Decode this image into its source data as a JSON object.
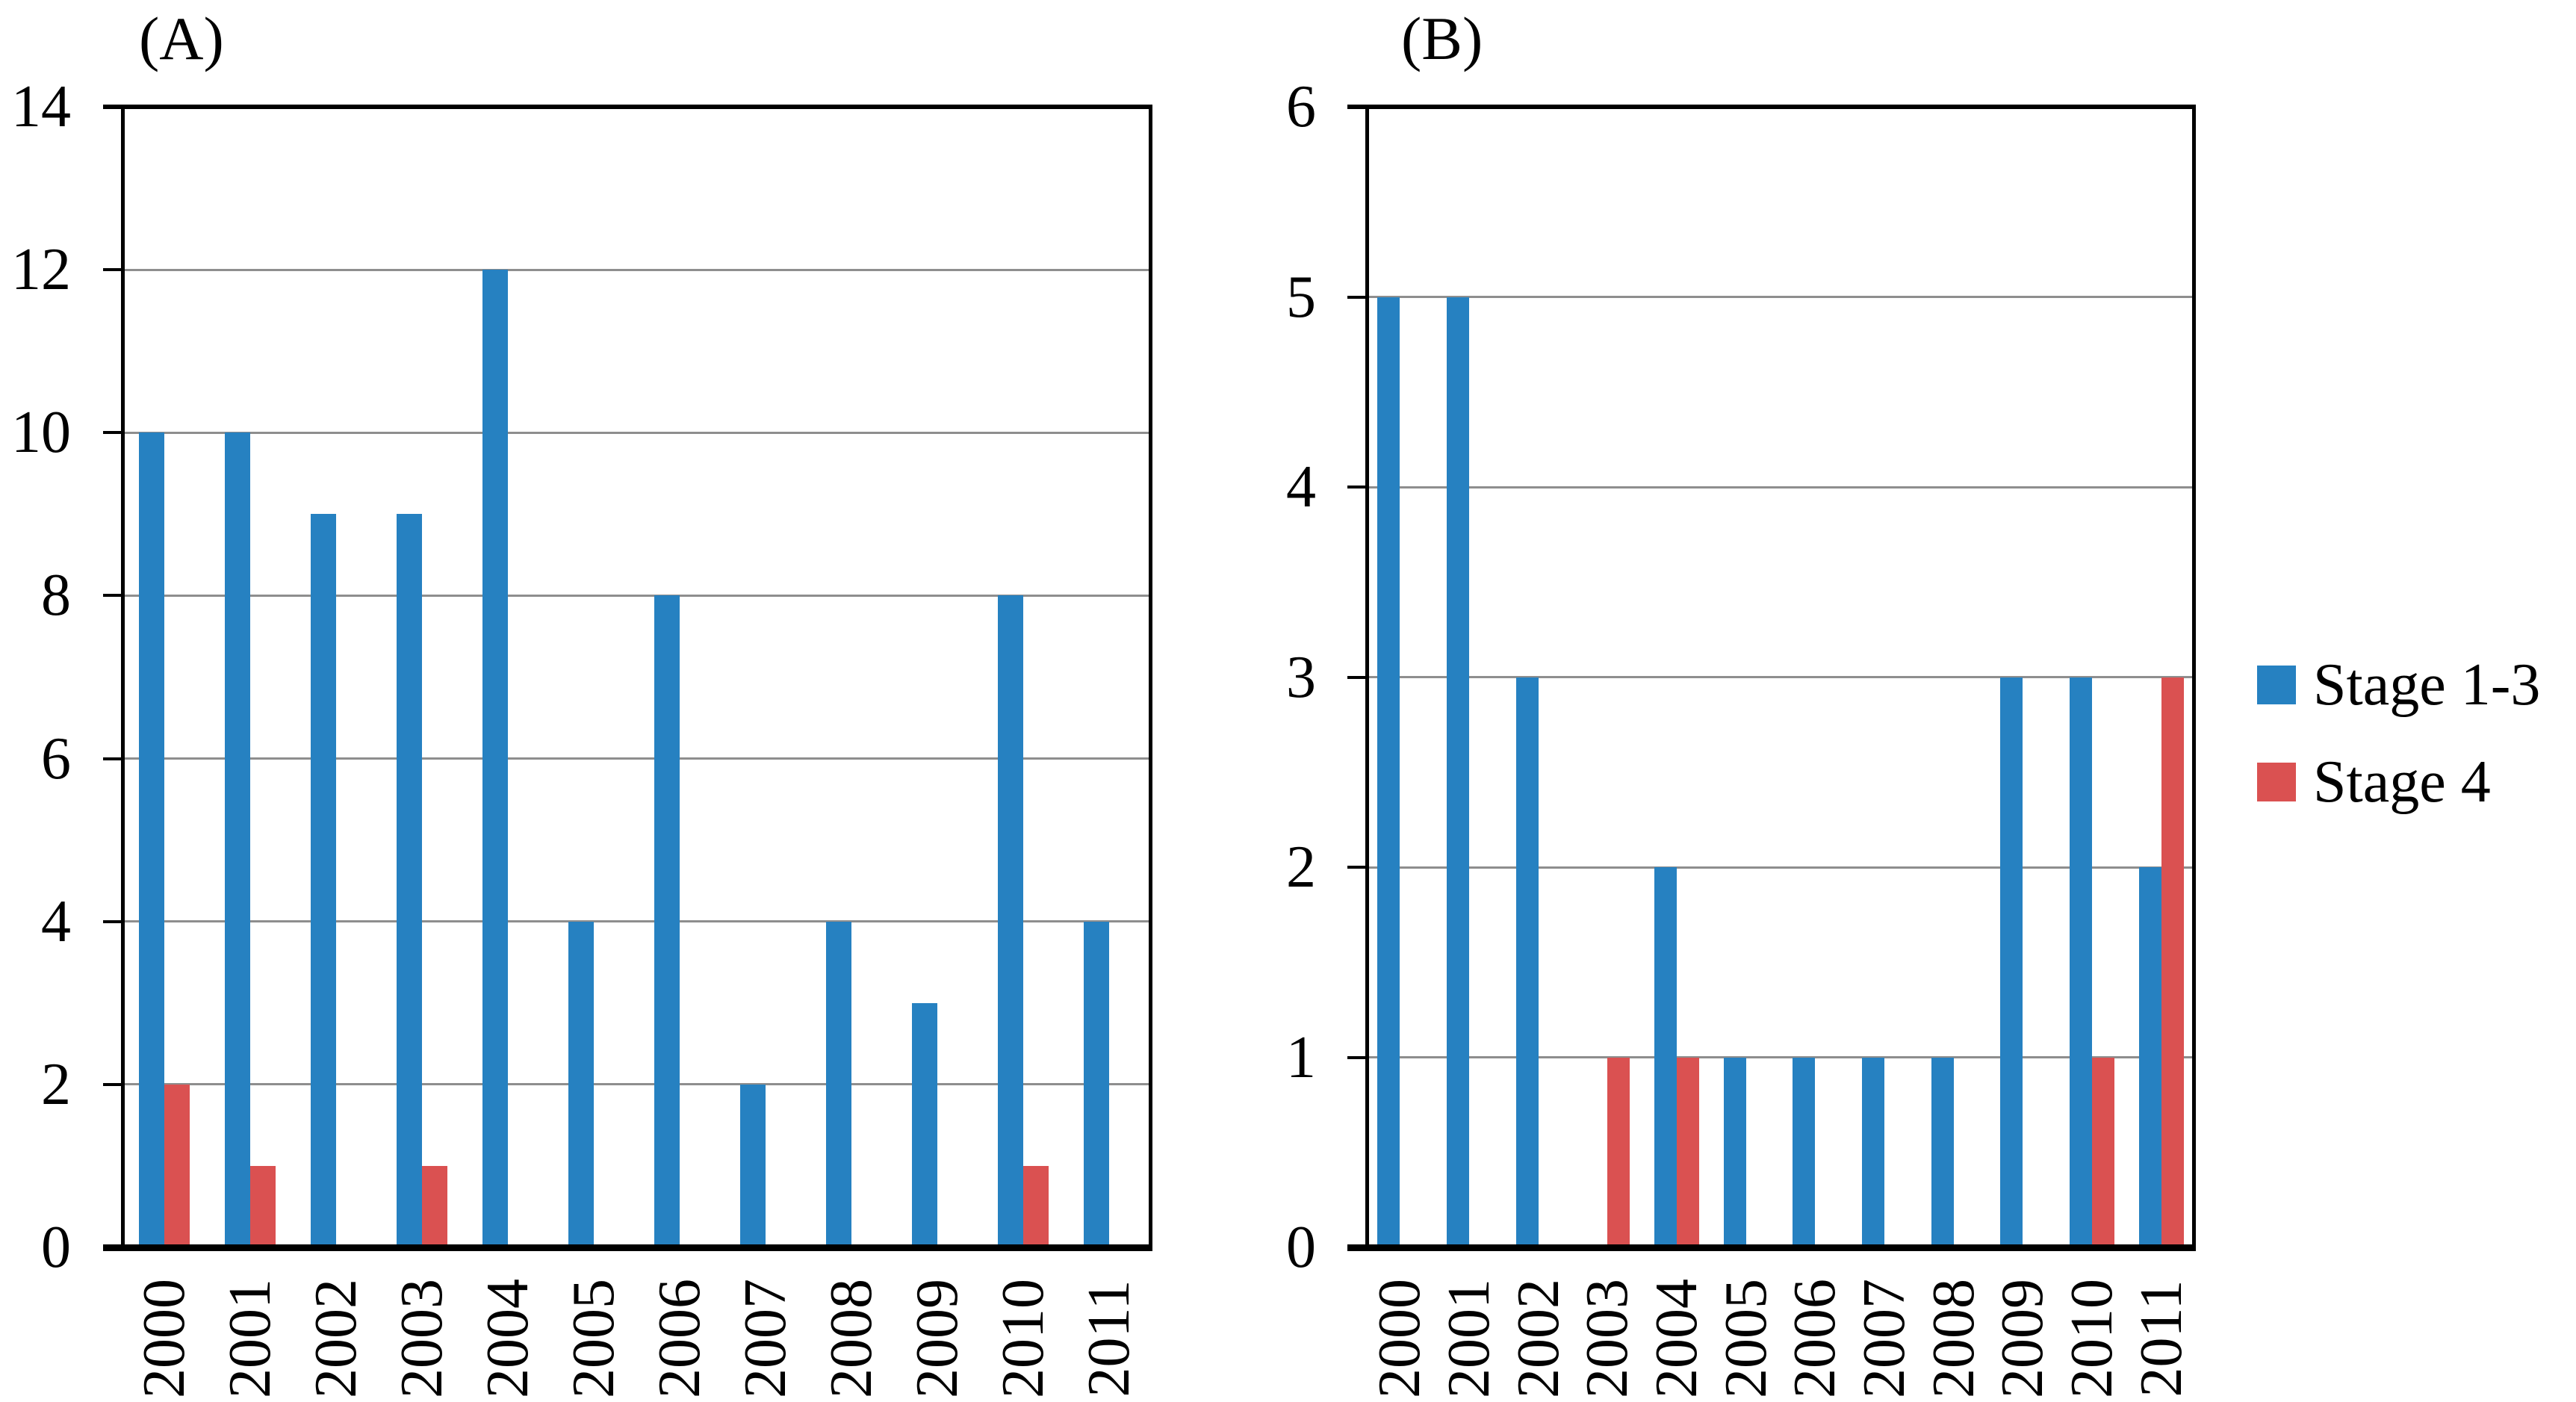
{
  "figure_description": "Two-panel grouped bar chart of counts per year (2000-2011), series Stage 1-3 (blue) and Stage 4 (red)",
  "colors": {
    "stage_1_3_blue": "#2681c1",
    "stage_4_red": "#da5151",
    "gridline_gray": "#8e8e8e",
    "axis_black": "#000000",
    "background": "#ffffff"
  },
  "legend": {
    "items": [
      {
        "label": "Stage 1-3",
        "color": "#2681c1"
      },
      {
        "label": "Stage 4",
        "color": "#da5151"
      }
    ],
    "position": "right-middle"
  },
  "chart_data": [
    {
      "type": "bar",
      "panel": "A",
      "title": "(A)",
      "categories": [
        "2000",
        "2001",
        "2002",
        "2003",
        "2004",
        "2005",
        "2006",
        "2007",
        "2008",
        "2009",
        "2010",
        "2011"
      ],
      "series": [
        {
          "name": "Stage 1-3",
          "color": "#2681c1",
          "values": [
            10,
            10,
            9,
            9,
            12,
            4,
            8,
            2,
            4,
            3,
            8,
            4
          ]
        },
        {
          "name": "Stage 4",
          "color": "#da5151",
          "values": [
            2,
            1,
            0,
            1,
            0,
            0,
            0,
            0,
            0,
            0,
            1,
            0
          ]
        }
      ],
      "xlabel": "",
      "ylabel": "",
      "ylim": [
        0,
        14
      ],
      "ytick_step": 2,
      "yticks": [
        0,
        2,
        4,
        6,
        8,
        10,
        12,
        14
      ],
      "grid": true,
      "legend_position": "none"
    },
    {
      "type": "bar",
      "panel": "B",
      "title": "(B)",
      "categories": [
        "2000",
        "2001",
        "2002",
        "2003",
        "2004",
        "2005",
        "2006",
        "2007",
        "2008",
        "2009",
        "2010",
        "2011"
      ],
      "series": [
        {
          "name": "Stage 1-3",
          "color": "#2681c1",
          "values": [
            5,
            5,
            3,
            0,
            2,
            1,
            1,
            1,
            1,
            3,
            3,
            2
          ]
        },
        {
          "name": "Stage 4",
          "color": "#da5151",
          "values": [
            0,
            0,
            0,
            1,
            1,
            0,
            0,
            0,
            0,
            0,
            1,
            3
          ]
        }
      ],
      "xlabel": "",
      "ylabel": "",
      "ylim": [
        0,
        6
      ],
      "ytick_step": 1,
      "yticks": [
        0,
        1,
        2,
        3,
        4,
        5,
        6
      ],
      "grid": true,
      "legend_position": "none"
    }
  ]
}
